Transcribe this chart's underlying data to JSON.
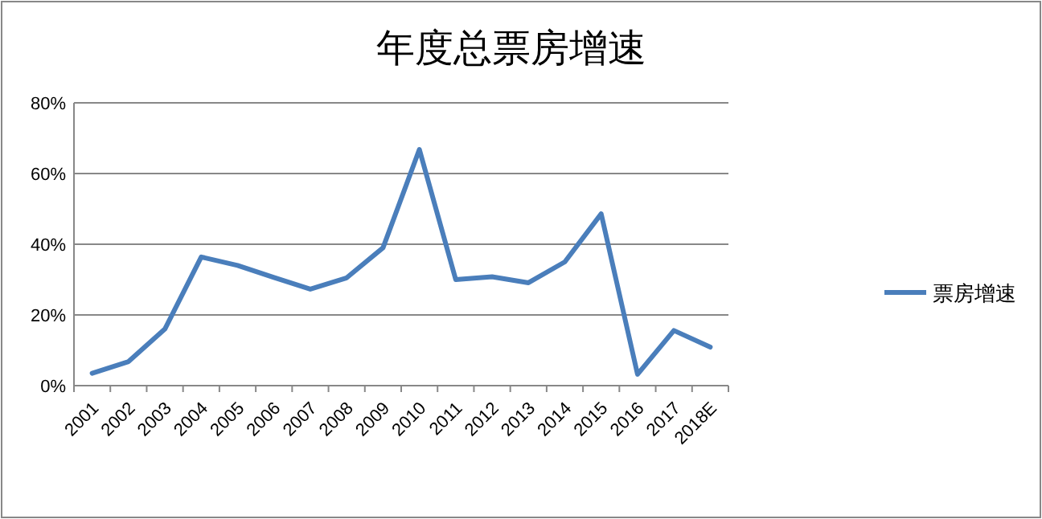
{
  "chart_data": {
    "type": "line",
    "title": "年度总票房增速",
    "categories": [
      "2001",
      "2002",
      "2003",
      "2004",
      "2005",
      "2006",
      "2007",
      "2008",
      "2009",
      "2010",
      "2011",
      "2012",
      "2013",
      "2014",
      "2015",
      "2016",
      "2017",
      "2018E"
    ],
    "series": [
      {
        "name": "票房增速",
        "color": "#4a7ebb",
        "values": [
          3.5,
          6.8,
          16,
          36.4,
          34,
          30.6,
          27.3,
          30.5,
          39,
          66.8,
          30,
          30.8,
          29.1,
          35,
          48.6,
          3.2,
          15.6,
          10.9
        ]
      }
    ],
    "ylim": [
      0,
      80
    ],
    "yticks": [
      {
        "value": 0,
        "label": "0%"
      },
      {
        "value": 20,
        "label": "20%"
      },
      {
        "value": 40,
        "label": "40%"
      },
      {
        "value": 60,
        "label": "60%"
      },
      {
        "value": 80,
        "label": "80%"
      }
    ],
    "grid": "y",
    "legend": "right",
    "marker": "none",
    "line_style": "solid"
  }
}
